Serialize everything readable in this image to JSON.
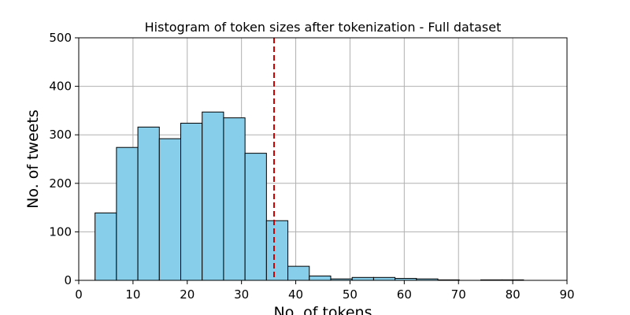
{
  "chart_data": {
    "type": "bar",
    "title": "Histogram of token sizes after tokenization - Full dataset",
    "xlabel": "No. of tokens",
    "ylabel": "No. of tweets",
    "xlim": [
      0,
      90
    ],
    "ylim": [
      0,
      500
    ],
    "xticks": [
      0,
      10,
      20,
      30,
      40,
      50,
      60,
      70,
      80,
      90
    ],
    "yticks": [
      0,
      100,
      200,
      300,
      400,
      500
    ],
    "grid": true,
    "bar_color": "#87ceeb",
    "edge_color": "#000000",
    "bins": [
      {
        "start": 3.0,
        "end": 6.95,
        "value": 139
      },
      {
        "start": 6.95,
        "end": 10.9,
        "value": 274
      },
      {
        "start": 10.9,
        "end": 14.85,
        "value": 316
      },
      {
        "start": 14.85,
        "end": 18.8,
        "value": 292
      },
      {
        "start": 18.8,
        "end": 22.75,
        "value": 324
      },
      {
        "start": 22.75,
        "end": 26.7,
        "value": 347
      },
      {
        "start": 26.7,
        "end": 30.65,
        "value": 335
      },
      {
        "start": 30.65,
        "end": 34.6,
        "value": 262
      },
      {
        "start": 34.6,
        "end": 38.55,
        "value": 123
      },
      {
        "start": 38.55,
        "end": 42.5,
        "value": 29
      },
      {
        "start": 42.5,
        "end": 46.45,
        "value": 9
      },
      {
        "start": 46.45,
        "end": 50.4,
        "value": 3
      },
      {
        "start": 50.4,
        "end": 54.35,
        "value": 6
      },
      {
        "start": 54.35,
        "end": 58.3,
        "value": 6
      },
      {
        "start": 58.3,
        "end": 62.25,
        "value": 4
      },
      {
        "start": 62.25,
        "end": 66.2,
        "value": 3
      },
      {
        "start": 66.2,
        "end": 70.15,
        "value": 1
      },
      {
        "start": 70.15,
        "end": 74.1,
        "value": 0
      },
      {
        "start": 74.1,
        "end": 78.05,
        "value": 1
      },
      {
        "start": 78.05,
        "end": 82.0,
        "value": 1
      }
    ],
    "reference_line": {
      "x": 36,
      "color": "#d00000",
      "style": "dashed"
    }
  }
}
